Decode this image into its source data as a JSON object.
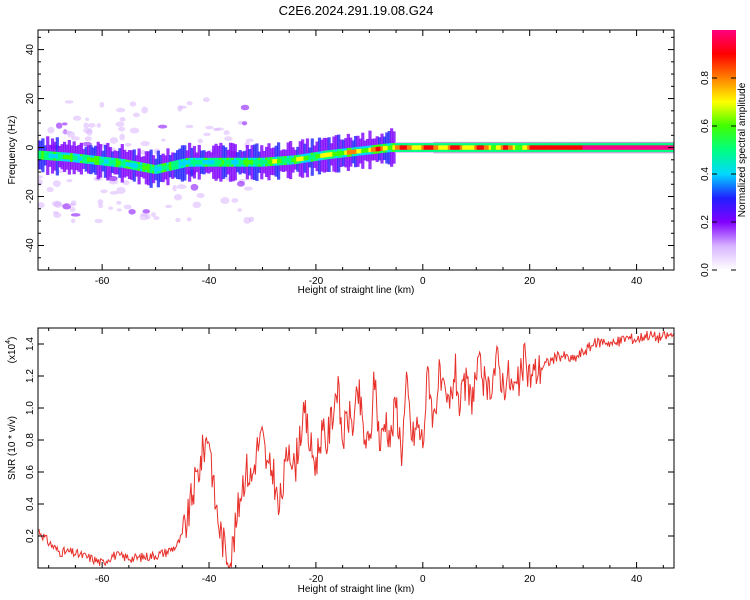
{
  "title": "C2E6.2024.291.19.08.G24",
  "chart_data": [
    {
      "type": "heatmap",
      "xlabel": "Height of straight line (km)",
      "ylabel": "Frequency (Hz)",
      "xlim": [
        -72,
        47
      ],
      "ylim": [
        -50,
        48
      ],
      "xticks": [
        -60,
        -40,
        -20,
        0,
        20,
        40
      ],
      "xtick_labels": [
        "-60",
        "-40",
        "-20",
        "0",
        "20",
        "40"
      ],
      "yticks": [
        40,
        20,
        0,
        -20,
        -40
      ],
      "ytick_labels": [
        "40",
        "20",
        "0",
        "-20",
        "-40"
      ],
      "colorbar": {
        "label": "Normalized spectral amplitude",
        "range": [
          0,
          1
        ],
        "ticks": [
          0.0,
          0.2,
          0.4,
          0.6,
          0.8
        ],
        "tick_labels": [
          "0.0",
          "0.2",
          "0.4",
          "0.6",
          "0.8"
        ],
        "colors": [
          "#ffffff",
          "#d8b4ff",
          "#8000ff",
          "#2020ff",
          "#00d8ff",
          "#00ff80",
          "#40ff00",
          "#ffff00",
          "#ff8000",
          "#ff0000",
          "#ff0080"
        ]
      },
      "ridge": {
        "x": [
          -72,
          -66,
          -60,
          -56,
          -50,
          -44,
          -38,
          -30,
          -24,
          -18,
          -12,
          -6,
          0,
          6,
          12,
          18,
          30,
          47
        ],
        "y": [
          -3,
          -4,
          -5.5,
          -6.5,
          -9,
          -6,
          -6,
          -6,
          -5,
          -3,
          -1.5,
          0,
          0,
          0,
          0,
          0,
          0,
          0
        ],
        "amplitude": [
          0.55,
          0.6,
          0.65,
          0.55,
          0.6,
          0.5,
          0.55,
          0.65,
          0.7,
          0.75,
          0.85,
          0.9,
          0.95,
          0.95,
          0.9,
          0.85,
          0.95,
          0.95
        ]
      }
    },
    {
      "type": "line",
      "xlabel": "Height of straight line (km)",
      "ylabel": "SNR (10 * v/v)",
      "y_multiplier_label": "(x10",
      "y_multiplier_exp": "4",
      "xlim": [
        -72,
        47
      ],
      "ylim": [
        0.0,
        1.5
      ],
      "xticks": [
        -60,
        -40,
        -20,
        0,
        20,
        40
      ],
      "xtick_labels": [
        "-60",
        "-40",
        "-20",
        "0",
        "20",
        "40"
      ],
      "yticks": [
        0.2,
        0.4,
        0.6,
        0.8,
        1.0,
        1.2,
        1.4
      ],
      "ytick_labels": [
        "0.2",
        "0.4",
        "0.6",
        "0.8",
        "1.0",
        "1.2",
        "1.4"
      ],
      "color": "#e8302a",
      "series": [
        {
          "x": [
            -72,
            -70,
            -68,
            -66,
            -64,
            -62,
            -60,
            -58,
            -56,
            -54,
            -52,
            -50,
            -48,
            -46,
            -45,
            -44,
            -43,
            -42,
            -41,
            -40,
            -39,
            -38,
            -37,
            -36,
            -35,
            -34,
            -33,
            -32,
            -31,
            -30,
            -29,
            -28,
            -27,
            -26,
            -25,
            -24,
            -23,
            -22,
            -21,
            -20,
            -19,
            -18,
            -17,
            -16,
            -15,
            -14,
            -13,
            -12,
            -11,
            -10,
            -9,
            -8,
            -7,
            -6,
            -5,
            -4,
            -3,
            -2,
            -1,
            0,
            1,
            2,
            3,
            4,
            5,
            6,
            7,
            8,
            9,
            10,
            11,
            12,
            13,
            14,
            15,
            16,
            17,
            18,
            19,
            20,
            22,
            24,
            26,
            28,
            30,
            32,
            34,
            36,
            38,
            40,
            42,
            44,
            47
          ],
          "y": [
            0.24,
            0.16,
            0.1,
            0.1,
            0.08,
            0.06,
            0.03,
            0.08,
            0.07,
            0.06,
            0.07,
            0.08,
            0.1,
            0.14,
            0.2,
            0.3,
            0.48,
            0.6,
            0.75,
            0.85,
            0.45,
            0.25,
            0.12,
            0.05,
            0.25,
            0.5,
            0.62,
            0.55,
            0.75,
            0.82,
            0.6,
            0.62,
            0.35,
            0.55,
            0.8,
            0.6,
            0.85,
            0.95,
            0.75,
            0.65,
            0.85,
            0.78,
            0.95,
            1.15,
            0.8,
            0.95,
            0.9,
            1.1,
            0.82,
            0.75,
            1.2,
            0.75,
            0.95,
            0.8,
            1.05,
            0.72,
            1.15,
            0.8,
            0.9,
            0.78,
            1.25,
            0.92,
            1.2,
            1.05,
            1.0,
            1.25,
            1.0,
            1.15,
            1.05,
            1.2,
            1.25,
            1.05,
            1.2,
            1.3,
            1.15,
            1.2,
            1.1,
            1.15,
            1.3,
            1.2,
            1.25,
            1.3,
            1.33,
            1.3,
            1.35,
            1.4,
            1.42,
            1.4,
            1.44,
            1.43,
            1.46,
            1.44,
            1.46
          ]
        }
      ]
    }
  ]
}
